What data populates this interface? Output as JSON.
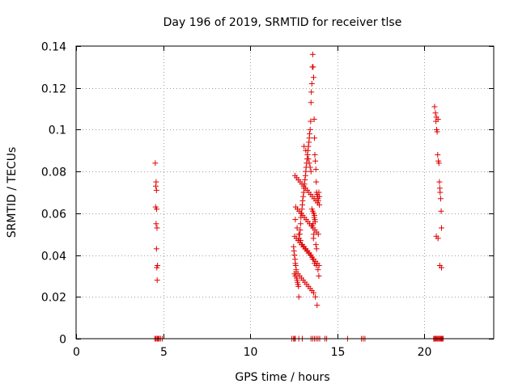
{
  "chart_data": {
    "type": "scatter",
    "title": "Day 196 of 2019, SRMTID for receiver tlse",
    "xlabel": "GPS time / hours",
    "ylabel": "SRMTID / TECUs",
    "xlim": [
      0,
      24
    ],
    "ylim": [
      0,
      0.14
    ],
    "xticks": [
      0,
      5,
      10,
      15,
      20
    ],
    "yticks": [
      0,
      0.02,
      0.04,
      0.06,
      0.08,
      0.1,
      0.12,
      0.14
    ],
    "ytick_labels": [
      "0",
      "0.02",
      "0.04",
      "0.06",
      "0.08",
      "0.1",
      "0.12",
      "0.14"
    ],
    "grid": true,
    "marker": "plus",
    "color": "#e00000",
    "series": [
      {
        "x": [
          4.55,
          4.6,
          4.58,
          4.62,
          4.57,
          4.63,
          4.6,
          4.65,
          4.62,
          4.68,
          4.64,
          4.66,
          4.7,
          4.52,
          4.58,
          4.65,
          4.72,
          4.78,
          4.85,
          4.95,
          12.5,
          12.52,
          12.55,
          12.58,
          12.6,
          12.62,
          12.65,
          12.55,
          12.6,
          12.68,
          12.7,
          12.72,
          12.75,
          12.78,
          12.8,
          12.82,
          12.85,
          12.88,
          12.9,
          12.92,
          12.95,
          12.98,
          13.0,
          13.02,
          13.05,
          13.08,
          13.1,
          13.12,
          13.15,
          13.18,
          13.2,
          13.22,
          13.25,
          13.28,
          13.3,
          13.32,
          13.35,
          13.38,
          13.4,
          13.42,
          13.45,
          13.48,
          13.5,
          13.52,
          13.55,
          13.58,
          13.6,
          13.62,
          13.65,
          13.68,
          13.7,
          13.72,
          13.75,
          13.78,
          13.8,
          13.82,
          13.85,
          13.88,
          13.9,
          13.92,
          13.95,
          13.98,
          12.6,
          12.7,
          12.8,
          12.9,
          13.0,
          13.1,
          13.2,
          13.3,
          13.4,
          13.5,
          13.6,
          13.7,
          13.8,
          13.9,
          12.65,
          12.75,
          12.85,
          12.95,
          13.05,
          13.15,
          13.25,
          13.35,
          13.45,
          13.55,
          13.65,
          13.75,
          13.85,
          13.95,
          12.58,
          12.68,
          12.78,
          12.88,
          12.98,
          13.08,
          13.18,
          13.28,
          13.38,
          13.48,
          13.58,
          13.68,
          13.78,
          13.88,
          13.98,
          12.62,
          12.72,
          12.82,
          12.92,
          13.02,
          13.12,
          13.22,
          13.32,
          13.42,
          13.52,
          13.62,
          13.72,
          13.82,
          13.92,
          12.56,
          12.66,
          12.76,
          12.86,
          12.96,
          13.06,
          13.16,
          13.26,
          13.36,
          13.46,
          13.56,
          13.66,
          13.76,
          13.86,
          13.96,
          13.55,
          13.6,
          13.65,
          13.7,
          13.68,
          13.72,
          13.74,
          13.62,
          13.58,
          13.66,
          13.64,
          13.78,
          13.82,
          13.5,
          13.45,
          13.4,
          13.35,
          13.3,
          13.2,
          13.1,
          12.4,
          12.5,
          12.55,
          12.6,
          12.8,
          13.0,
          13.5,
          13.6,
          13.7,
          13.8,
          13.9,
          14.0,
          14.3,
          14.4,
          15.6,
          16.4,
          16.5,
          16.6,
          20.6,
          20.65,
          20.7,
          20.68,
          20.72,
          20.75,
          20.8,
          20.78,
          20.82,
          20.85,
          20.88,
          20.9,
          20.92,
          20.95,
          20.98,
          21.0,
          20.7,
          20.8,
          20.9,
          21.0,
          20.55,
          20.6,
          20.65,
          20.7,
          20.75,
          20.8,
          20.85,
          20.9,
          20.95,
          21.0,
          21.05,
          21.1
        ],
        "y": [
          0.084,
          0.075,
          0.073,
          0.071,
          0.063,
          0.062,
          0.055,
          0.053,
          0.043,
          0.035,
          0.034,
          0.028,
          0.0,
          0.0,
          0.0,
          0.0,
          0.0,
          0.0,
          0.0,
          0.0,
          0.044,
          0.042,
          0.04,
          0.038,
          0.036,
          0.035,
          0.033,
          0.031,
          0.03,
          0.029,
          0.028,
          0.027,
          0.026,
          0.025,
          0.02,
          0.048,
          0.05,
          0.052,
          0.055,
          0.058,
          0.06,
          0.062,
          0.064,
          0.066,
          0.068,
          0.07,
          0.072,
          0.074,
          0.076,
          0.078,
          0.08,
          0.082,
          0.084,
          0.086,
          0.088,
          0.09,
          0.092,
          0.094,
          0.096,
          0.098,
          0.1,
          0.104,
          0.113,
          0.118,
          0.122,
          0.13,
          0.136,
          0.13,
          0.125,
          0.105,
          0.096,
          0.088,
          0.085,
          0.081,
          0.075,
          0.07,
          0.069,
          0.068,
          0.067,
          0.066,
          0.07,
          0.068,
          0.057,
          0.053,
          0.05,
          0.047,
          0.045,
          0.044,
          0.043,
          0.042,
          0.041,
          0.04,
          0.038,
          0.036,
          0.035,
          0.033,
          0.032,
          0.031,
          0.03,
          0.029,
          0.028,
          0.027,
          0.026,
          0.025,
          0.024,
          0.023,
          0.022,
          0.02,
          0.016,
          0.03,
          0.078,
          0.077,
          0.076,
          0.075,
          0.074,
          0.073,
          0.072,
          0.071,
          0.07,
          0.069,
          0.068,
          0.067,
          0.066,
          0.065,
          0.064,
          0.063,
          0.062,
          0.061,
          0.06,
          0.059,
          0.058,
          0.057,
          0.056,
          0.055,
          0.054,
          0.053,
          0.052,
          0.051,
          0.05,
          0.049,
          0.048,
          0.047,
          0.046,
          0.045,
          0.044,
          0.043,
          0.042,
          0.041,
          0.04,
          0.039,
          0.038,
          0.037,
          0.036,
          0.035,
          0.062,
          0.061,
          0.06,
          0.059,
          0.058,
          0.057,
          0.056,
          0.055,
          0.054,
          0.05,
          0.048,
          0.045,
          0.043,
          0.08,
          0.082,
          0.084,
          0.086,
          0.088,
          0.09,
          0.092,
          0.0,
          0.0,
          0.0,
          0.0,
          0.0,
          0.0,
          0.0,
          0.0,
          0.0,
          0.0,
          0.0,
          0.0,
          0.0,
          0.0,
          0.0,
          0.0,
          0.0,
          0.0,
          0.111,
          0.108,
          0.106,
          0.104,
          0.1,
          0.099,
          0.105,
          0.088,
          0.085,
          0.084,
          0.075,
          0.072,
          0.07,
          0.067,
          0.061,
          0.053,
          0.049,
          0.048,
          0.035,
          0.034,
          0.0,
          0.0,
          0.0,
          0.0,
          0.0,
          0.0,
          0.0,
          0.0,
          0.0,
          0.0,
          0.0,
          0.0
        ]
      }
    ]
  }
}
